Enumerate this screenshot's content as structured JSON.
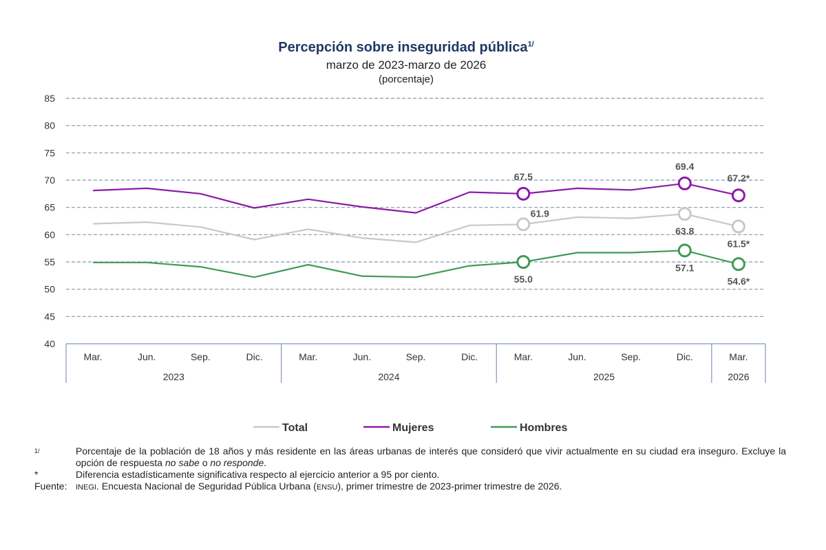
{
  "chart_data": {
    "type": "line",
    "title": "Percepción sobre inseguridad pública",
    "title_superscript": "1/",
    "subtitle": "marzo de 2023-marzo de 2026",
    "unit": "(porcentaje)",
    "ylim": [
      40,
      85
    ],
    "yticks": [
      40,
      45,
      50,
      55,
      60,
      65,
      70,
      75,
      80,
      85
    ],
    "grid": true,
    "categories": [
      "Mar.",
      "Jun.",
      "Sep.",
      "Dic.",
      "Mar.",
      "Jun.",
      "Sep.",
      "Dic.",
      "Mar.",
      "Jun.",
      "Sep.",
      "Dic.",
      "Mar."
    ],
    "year_groups": [
      {
        "label": "2023",
        "start": 0,
        "end": 3
      },
      {
        "label": "2024",
        "start": 4,
        "end": 7
      },
      {
        "label": "2025",
        "start": 8,
        "end": 11
      },
      {
        "label": "2026",
        "start": 12,
        "end": 12
      }
    ],
    "series": [
      {
        "name": "Total",
        "color": "#c8c8c8",
        "values": [
          62.0,
          62.3,
          61.4,
          59.1,
          61.0,
          59.4,
          58.6,
          61.7,
          61.9,
          63.2,
          63.0,
          63.8,
          61.5
        ],
        "markers": [
          {
            "index": 8,
            "label": "61.9",
            "pos": "above-right"
          },
          {
            "index": 11,
            "label": "63.8",
            "pos": "below"
          },
          {
            "index": 12,
            "label": "61.5*",
            "pos": "below"
          }
        ]
      },
      {
        "name": "Mujeres",
        "color": "#8b1aa8",
        "values": [
          68.1,
          68.5,
          67.5,
          64.9,
          66.5,
          65.1,
          64.0,
          67.8,
          67.5,
          68.5,
          68.2,
          69.4,
          67.2
        ],
        "markers": [
          {
            "index": 8,
            "label": "67.5",
            "pos": "above"
          },
          {
            "index": 11,
            "label": "69.4",
            "pos": "above"
          },
          {
            "index": 12,
            "label": "67.2*",
            "pos": "above"
          }
        ]
      },
      {
        "name": "Hombres",
        "color": "#3f9a56",
        "values": [
          54.9,
          54.9,
          54.1,
          52.2,
          54.5,
          52.4,
          52.2,
          54.3,
          55.0,
          56.7,
          56.7,
          57.1,
          54.6
        ],
        "markers": [
          {
            "index": 8,
            "label": "55.0",
            "pos": "below"
          },
          {
            "index": 11,
            "label": "57.1",
            "pos": "below"
          },
          {
            "index": 12,
            "label": "54.6*",
            "pos": "below"
          }
        ]
      }
    ],
    "legend": [
      "Total",
      "Mujeres",
      "Hombres"
    ],
    "legend_position": "bottom-center"
  },
  "notes": {
    "footnote_mark": "1/",
    "footnote_text_1": "Porcentaje de la población de 18 años y más residente en las áreas urbanas de interés que consideró que vivir actualmente en su ciudad era inseguro. Excluye la opción de respuesta ",
    "footnote_italic_1": "no sabe",
    "footnote_text_2": " o ",
    "footnote_italic_2": "no responde",
    "footnote_text_3": ".",
    "star_mark": "*",
    "star_text": "Diferencia estadísticamente significativa respecto al ejercicio anterior a 95 por ciento.",
    "source_label": "Fuente:",
    "source_inegi": "INEGI",
    "source_text_1": ". Encuesta Nacional de Seguridad Pública Urbana (",
    "source_ensu": "ENSU",
    "source_text_2": "), primer trimestre de 2023-primer trimestre de 2026."
  }
}
